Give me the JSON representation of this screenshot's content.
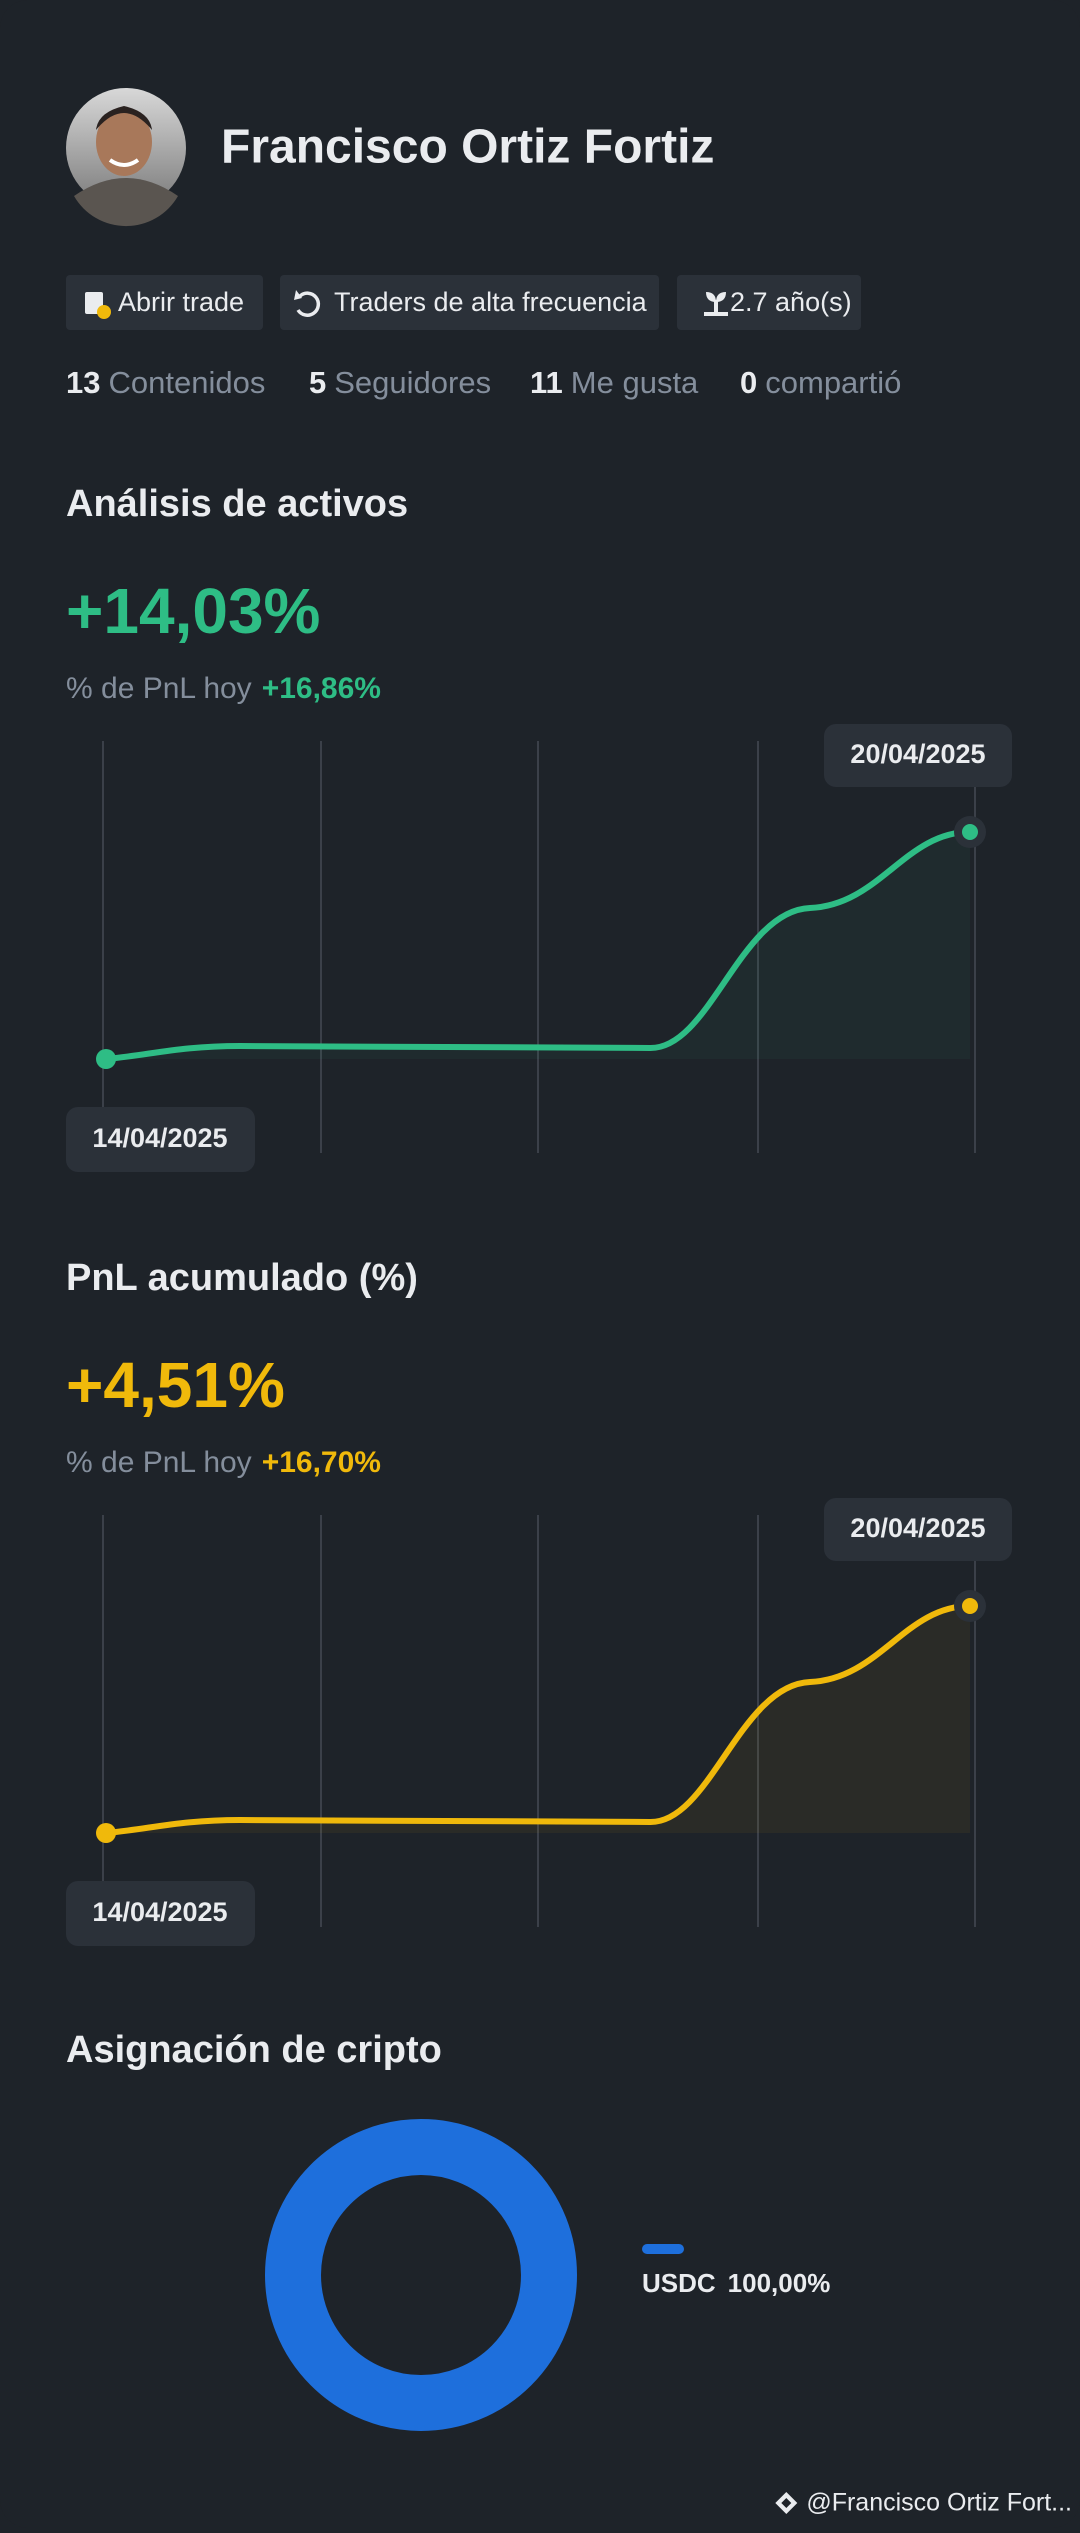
{
  "profile": {
    "name": "Francisco Ortiz Fortiz",
    "tags": [
      "Abrir trade",
      "Traders de alta frecuencia",
      "2.7 año(s)"
    ],
    "stats": [
      {
        "count": 13,
        "label": "Contenidos"
      },
      {
        "count": 5,
        "label": "Seguidores"
      },
      {
        "count": 11,
        "label": "Me gusta"
      },
      {
        "count": 0,
        "label": "compartió"
      }
    ]
  },
  "sections": [
    {
      "title": "Análisis de activos",
      "value": "+14,03%",
      "subtitle_label": "% de PnL hoy",
      "subtitle_value": "+16,86%",
      "start_date": "14/04/2025",
      "end_date": "20/04/2025",
      "color": "#2ebd85"
    },
    {
      "title": "PnL acumulado (%)",
      "value": "+4,51%",
      "subtitle_label": "% de PnL hoy",
      "subtitle_value": "+16,70%",
      "start_date": "14/04/2025",
      "end_date": "20/04/2025",
      "color": "#f0b90b"
    }
  ],
  "allocation": {
    "title": "Asignación de cripto",
    "legend": [
      {
        "asset": "USDC",
        "share": "100,00%",
        "color": "#1e6fdc"
      }
    ]
  },
  "footer": "@Francisco Ortiz Fort..."
}
